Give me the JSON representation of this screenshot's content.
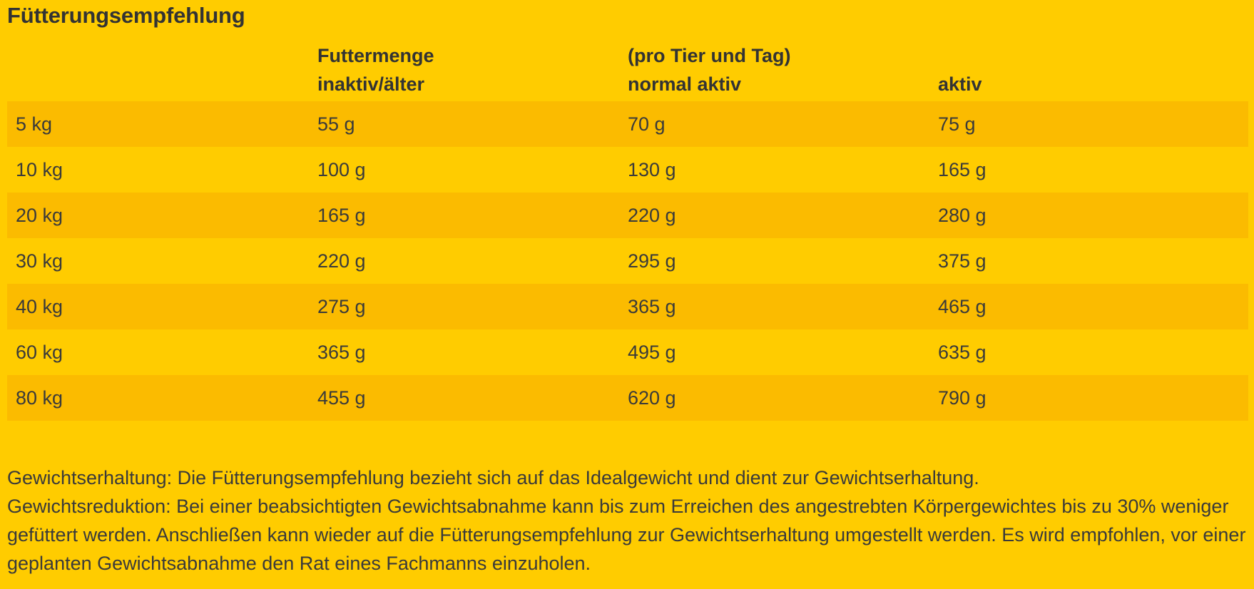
{
  "title": "Fütterungsempfehlung",
  "header": {
    "row1": [
      "",
      "Futtermenge",
      "(pro Tier und Tag)",
      ""
    ],
    "row2": [
      "",
      "inaktiv/älter",
      "normal aktiv",
      "aktiv"
    ]
  },
  "rows": [
    [
      "5 kg",
      "55 g",
      "70 g",
      "75 g"
    ],
    [
      "10 kg",
      "100 g",
      "130 g",
      "165 g"
    ],
    [
      "20 kg",
      "165 g",
      "220 g",
      "280 g"
    ],
    [
      "30 kg",
      "220 g",
      "295 g",
      "375 g"
    ],
    [
      "40 kg",
      "275 g",
      "365 g",
      "465 g"
    ],
    [
      "60 kg",
      "365 g",
      "495 g",
      "635 g"
    ],
    [
      "80 kg",
      "455 g",
      "620 g",
      "790 g"
    ]
  ],
  "notes": {
    "maintenance": "Gewichtserhaltung: Die Fütterungsempfehlung bezieht sich auf das Idealgewicht und dient zur Gewichtserhaltung.",
    "reduction": "Gewichtsreduktion: Bei einer beabsichtigten Gewichtsabnahme kann bis zum Erreichen des angestrebten Körpergewichtes bis zu 30% weniger gefüttert werden. Anschließen kann wieder auf die Fütterungsempfehlung zur Gewichtserhaltung umgestellt werden. Es wird empfohlen, vor einer geplanten Gewichtsabnahme den Rat eines Fachmanns einzuholen."
  },
  "colors": {
    "background": "#ffcc00",
    "stripe": "#fbbb00",
    "text": "#3a3a3a"
  }
}
